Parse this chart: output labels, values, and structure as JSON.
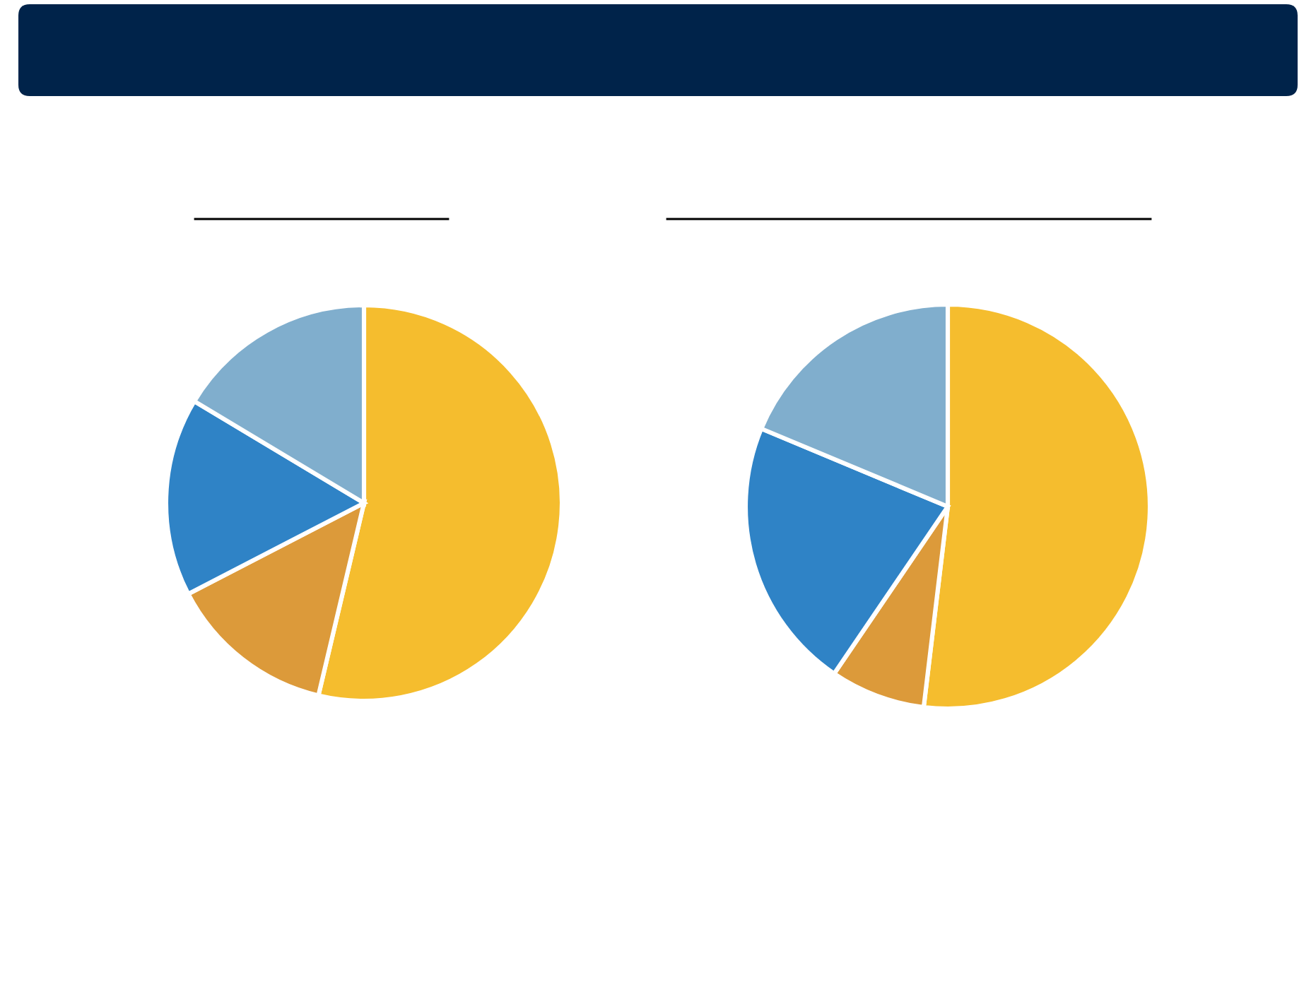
{
  "chart_data": [
    {
      "type": "pie",
      "categories": [
        null,
        null,
        null,
        null
      ],
      "values": [
        53.7,
        13.7,
        16.2,
        16.4
      ],
      "colors": [
        "#f5bd2e",
        "#dc9a3a",
        "#2f83c6",
        "#80aecd"
      ]
    },
    {
      "type": "pie",
      "categories": [
        null,
        null,
        null,
        null
      ],
      "values": [
        51.9,
        7.6,
        21.8,
        18.7
      ],
      "colors": [
        "#f5bd2e",
        "#dc9a3a",
        "#2f83c6",
        "#80aecd"
      ]
    }
  ]
}
